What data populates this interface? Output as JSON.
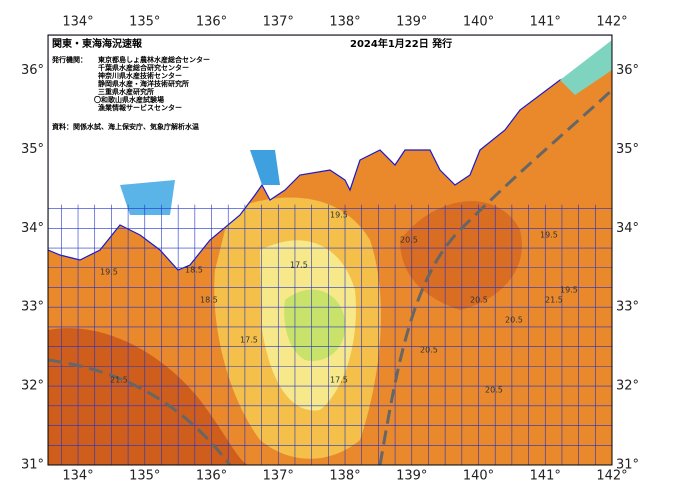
{
  "header": {
    "title": "関東・東海海況速報",
    "date": "2024年1月22日 発行",
    "issuer_label": "発行機関：",
    "issuers": [
      "東京都島しょ農林水産総合センター",
      "千葉県水産総合研究センター",
      "神奈川県水産技術センター",
      "静岡県水産・海洋技術研究所",
      "三重県水産研究所",
      "〇和歌山県水産試験場",
      "漁業情報サービスセンター"
    ],
    "source": "資料：関係水試、海上保安庁、気象庁解析水温"
  },
  "lon_ticks": [
    {
      "value": 134,
      "label": "134°"
    },
    {
      "value": 135,
      "label": "135°"
    },
    {
      "value": 136,
      "label": "136°"
    },
    {
      "value": 137,
      "label": "137°"
    },
    {
      "value": 138,
      "label": "138°"
    },
    {
      "value": 139,
      "label": "139°"
    },
    {
      "value": 140,
      "label": "140°"
    },
    {
      "value": 141,
      "label": "141°"
    },
    {
      "value": 142,
      "label": "142°"
    }
  ],
  "lat_ticks": [
    {
      "value": 36,
      "label": "36°"
    },
    {
      "value": 35,
      "label": "35°"
    },
    {
      "value": 34,
      "label": "34°"
    },
    {
      "value": 33,
      "label": "33°"
    },
    {
      "value": 32,
      "label": "32°"
    },
    {
      "value": 31,
      "label": "31°"
    }
  ],
  "contour_labels": [
    "19.5",
    "18.5",
    "17.5",
    "18.5",
    "17.5",
    "17.5",
    "19.5",
    "20.5",
    "20.5",
    "20.5",
    "19.5",
    "21.5",
    "20.5",
    "21.5",
    "19.5",
    "20.5"
  ]
}
